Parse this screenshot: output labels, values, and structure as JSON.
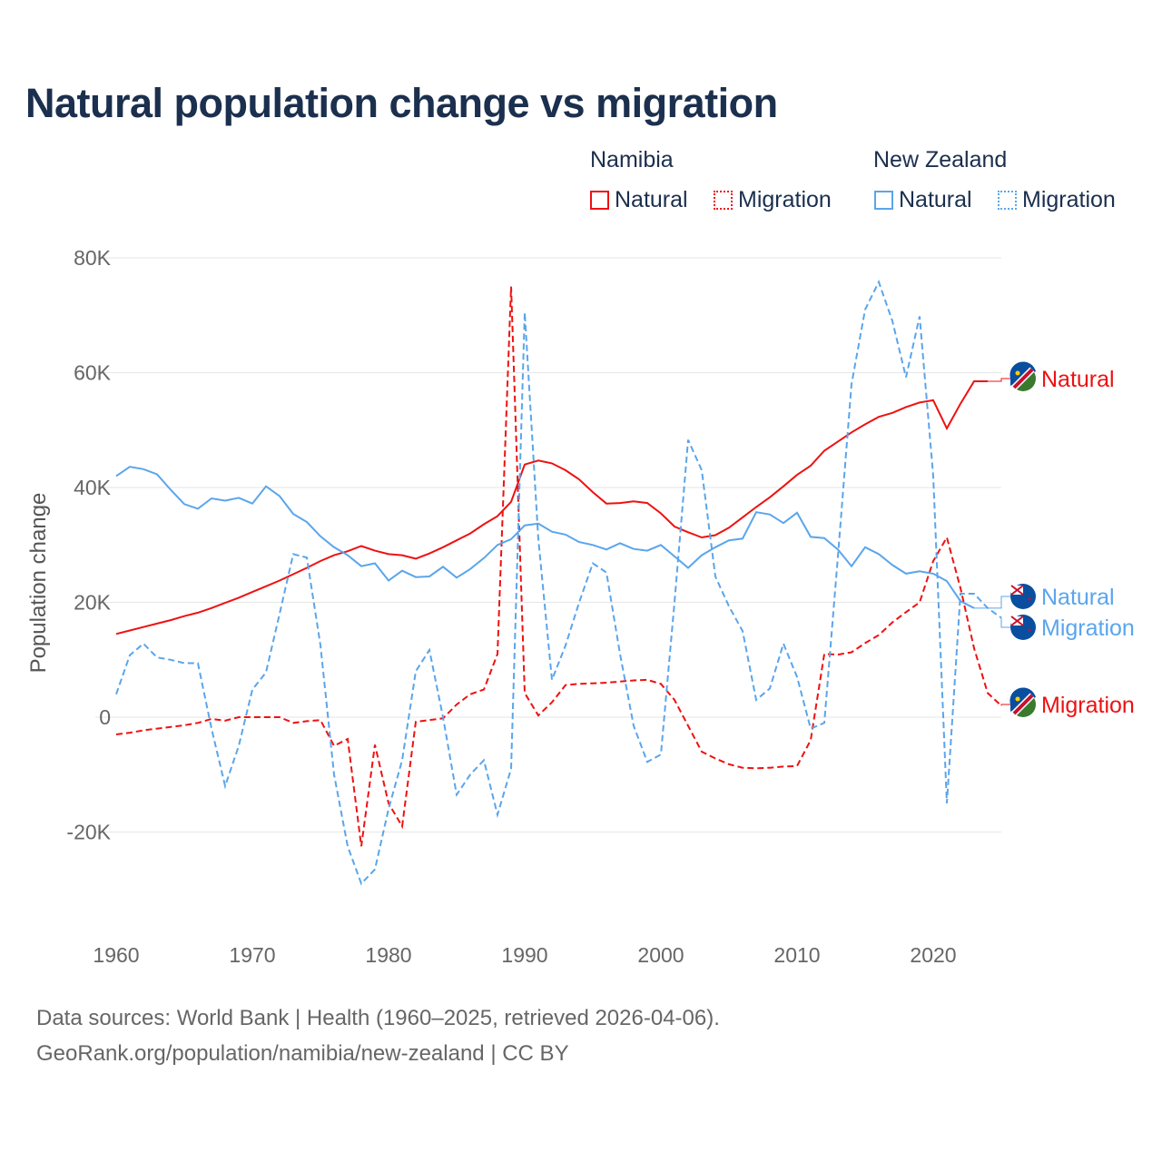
{
  "chart_data": {
    "type": "line",
    "title": "Natural population change vs migration",
    "ylabel": "Population change",
    "xlabel": "",
    "ylim": [
      -30000,
      80000
    ],
    "xlim": [
      1960,
      2025
    ],
    "y_ticks": [
      {
        "v": 80000,
        "label": "80K"
      },
      {
        "v": 60000,
        "label": "60K"
      },
      {
        "v": 40000,
        "label": "40K"
      },
      {
        "v": 20000,
        "label": "20K"
      },
      {
        "v": 0,
        "label": "0"
      },
      {
        "v": -20000,
        "label": "-20K"
      }
    ],
    "x_ticks": [
      {
        "v": 1960,
        "label": "1960"
      },
      {
        "v": 1970,
        "label": "1970"
      },
      {
        "v": 1980,
        "label": "1980"
      },
      {
        "v": 1990,
        "label": "1990"
      },
      {
        "v": 2000,
        "label": "2000"
      },
      {
        "v": 2010,
        "label": "2010"
      },
      {
        "v": 2020,
        "label": "2020"
      }
    ],
    "grid": true,
    "legend_placement": "top-right",
    "legend": {
      "groups": [
        {
          "name": "Namibia",
          "items": [
            {
              "label": "Natural",
              "style": "solid"
            },
            {
              "label": "Migration",
              "style": "dashed"
            }
          ]
        },
        {
          "name": "New Zealand",
          "items": [
            {
              "label": "Natural",
              "style": "solid"
            },
            {
              "label": "Migration",
              "style": "dashed"
            }
          ]
        }
      ]
    },
    "start_year": 1960,
    "series": [
      {
        "name": "Namibia Natural",
        "country": "Namibia",
        "label": "Natural",
        "color": "#ee1111",
        "dash": false,
        "flag": "namibia",
        "values": [
          14.5,
          15.1,
          15.7,
          16.3,
          16.9,
          17.6,
          18.2,
          19.0,
          19.9,
          20.8,
          21.8,
          22.8,
          23.8,
          24.9,
          26.0,
          27.2,
          28.2,
          28.9,
          29.8,
          29.0,
          28.4,
          28.2,
          27.6,
          28.5,
          29.6,
          30.8,
          32.0,
          33.6,
          35.0,
          37.5,
          44.0,
          44.7,
          44.2,
          43.0,
          41.4,
          39.2,
          37.2,
          37.3,
          37.6,
          37.3,
          35.5,
          33.2,
          32.2,
          31.3,
          31.7,
          33.0,
          34.8,
          36.6,
          38.3,
          40.2,
          42.2,
          43.8,
          46.4,
          48.0,
          49.6,
          51.0,
          52.3,
          53.0,
          54.0,
          54.8,
          55.2,
          50.3,
          54.6,
          58.5,
          58.5
        ]
      },
      {
        "name": "Namibia Migration",
        "country": "Namibia",
        "label": "Migration",
        "color": "#ee1111",
        "dash": true,
        "flag": "namibia",
        "values": [
          -3.0,
          -2.7,
          -2.3,
          -2.0,
          -1.7,
          -1.4,
          -1.0,
          -0.3,
          -0.6,
          0,
          0,
          0,
          0,
          -1.0,
          -0.7,
          -0.5,
          -5.0,
          -3.8,
          -22.5,
          -4.8,
          -15.0,
          -19.0,
          -0.8,
          -0.5,
          -0.2,
          2.2,
          4.0,
          4.8,
          11.0,
          75.0,
          4.2,
          0.3,
          2.6,
          5.6,
          5.8,
          5.9,
          6.0,
          6.2,
          6.4,
          6.5,
          5.8,
          3.0,
          -1.5,
          -6.0,
          -7.2,
          -8.2,
          -8.8,
          -8.9,
          -8.8,
          -8.6,
          -8.5,
          -4.0,
          11.0,
          10.9,
          11.3,
          12.9,
          14.3,
          16.5,
          18.3,
          20.0,
          27.2,
          31.3,
          22.5,
          12.0,
          4.2,
          2.0
        ]
      },
      {
        "name": "New Zealand Natural",
        "country": "New Zealand",
        "label": "Natural",
        "color": "#5aa5ec",
        "dash": false,
        "flag": "new-zealand",
        "values": [
          42.0,
          43.6,
          43.2,
          42.3,
          39.6,
          37.1,
          36.3,
          38.1,
          37.7,
          38.2,
          37.2,
          40.2,
          38.5,
          35.4,
          34.0,
          31.5,
          29.6,
          28.2,
          26.3,
          26.8,
          23.8,
          25.5,
          24.4,
          24.5,
          26.2,
          24.3,
          25.8,
          27.7,
          30.0,
          31.0,
          33.4,
          33.7,
          32.3,
          31.8,
          30.5,
          30.0,
          29.2,
          30.3,
          29.3,
          29.0,
          30.0,
          28.0,
          26.0,
          28.2,
          29.6,
          30.8,
          31.1,
          35.7,
          35.3,
          33.8,
          35.6,
          31.4,
          31.2,
          29.2,
          26.3,
          29.6,
          28.4,
          26.5,
          25.0,
          25.4,
          25.0,
          23.7,
          20.2,
          19.0
        ]
      },
      {
        "name": "New Zealand Migration",
        "country": "New Zealand",
        "label": "Migration",
        "color": "#5aa5ec",
        "dash": true,
        "flag": "new-zealand",
        "values": [
          4.0,
          10.8,
          12.8,
          10.4,
          10.0,
          9.4,
          9.4,
          -2.0,
          -12.0,
          -5.0,
          4.8,
          7.8,
          18.0,
          28.4,
          27.8,
          12.5,
          -10.0,
          -22.5,
          -29.0,
          -26.5,
          -16.0,
          -7.5,
          8.0,
          11.7,
          0,
          -13.5,
          -10.0,
          -7.5,
          -17.0,
          -9.0,
          70.5,
          31.0,
          6.5,
          12.5,
          20.0,
          26.8,
          25.2,
          11.0,
          -1.5,
          -7.8,
          -6.5,
          20.0,
          48.3,
          43.0,
          24.5,
          19.3,
          15.0,
          3.0,
          5.0,
          12.8,
          7.0,
          -2.0,
          -1.0,
          28.0,
          58.0,
          71.0,
          75.8,
          69.0,
          59.2,
          69.8,
          42.0,
          -15.0,
          21.5,
          21.5,
          19.0,
          17.3
        ]
      }
    ],
    "value_unit": "thousands"
  },
  "footer": {
    "line1": "Data sources: World Bank | Health (1960–2025, retrieved 2026-04-06).",
    "line2": "GeoRank.org/population/namibia/new-zealand | CC BY"
  }
}
